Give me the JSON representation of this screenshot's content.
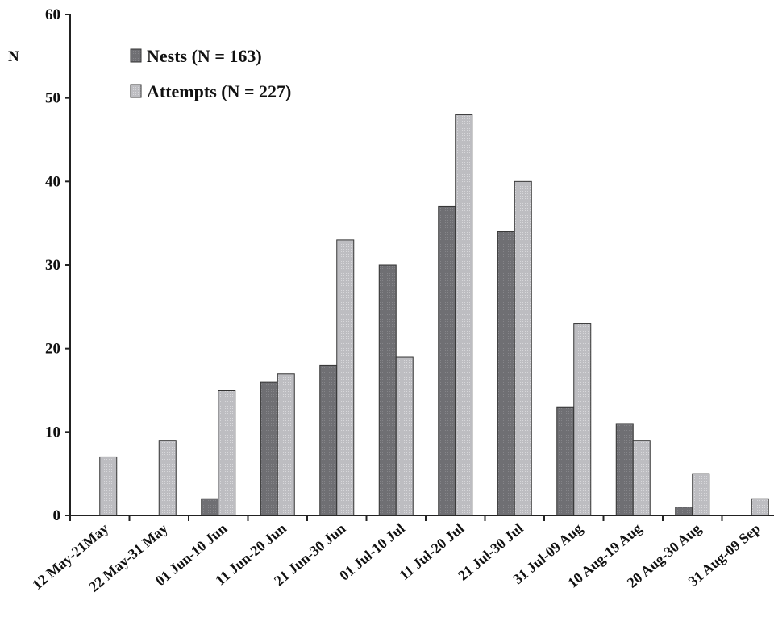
{
  "chart_data": {
    "type": "bar",
    "title": "",
    "xlabel": "",
    "ylabel": "N",
    "ylim": [
      0,
      60
    ],
    "yticks": [
      0,
      10,
      20,
      30,
      40,
      50,
      60
    ],
    "grid": false,
    "legend_position": "top-left",
    "categories": [
      "12 May-21May",
      "22 May-31 May",
      "01 Jun-10 Jun",
      "11 Jun-20 Jun",
      "21 Jun-30 Jun",
      "01 Jul-10 Jul",
      "11 Jul-20 Jul",
      "21 Jul-30 Jul",
      "31 Jul-09 Aug",
      "10 Aug-19 Aug",
      "20 Aug-30 Aug",
      "31 Aug-09 Sep"
    ],
    "series": [
      {
        "name": "Nests (N = 163)",
        "color": "#6f6f73",
        "values": [
          0,
          0,
          2,
          16,
          18,
          30,
          37,
          34,
          13,
          11,
          1,
          0
        ]
      },
      {
        "name": "Attempts (N = 227)",
        "color": "#bdbdc1",
        "values": [
          7,
          9,
          15,
          17,
          33,
          19,
          48,
          40,
          23,
          9,
          5,
          2
        ]
      }
    ]
  }
}
